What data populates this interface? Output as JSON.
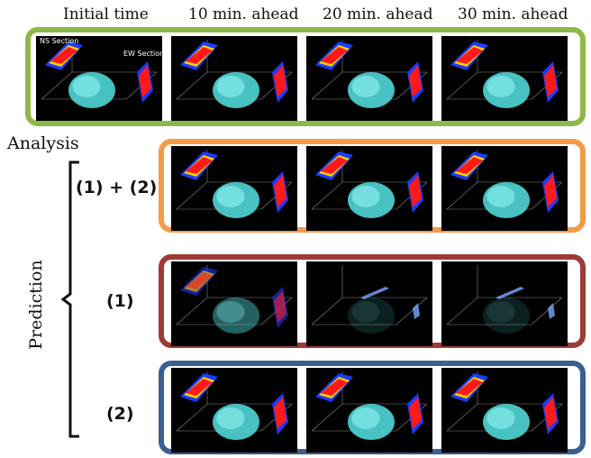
{
  "columns": [
    "Initial time",
    "10 min. ahead",
    "20 min. ahead",
    "30 min. ahead"
  ],
  "analysis_label": "Analysis",
  "prediction_label": "Prediction",
  "rows": [
    {
      "label": "(1) + (2)",
      "color": "#f39b4a"
    },
    {
      "label": "(1)",
      "color": "#9e3b36"
    },
    {
      "label": "(2)",
      "color": "#3c5f8f"
    }
  ],
  "analysis_frame_color": "#8fb84a",
  "annotations": {
    "ns": "NS Section",
    "ew": "EW Section"
  }
}
